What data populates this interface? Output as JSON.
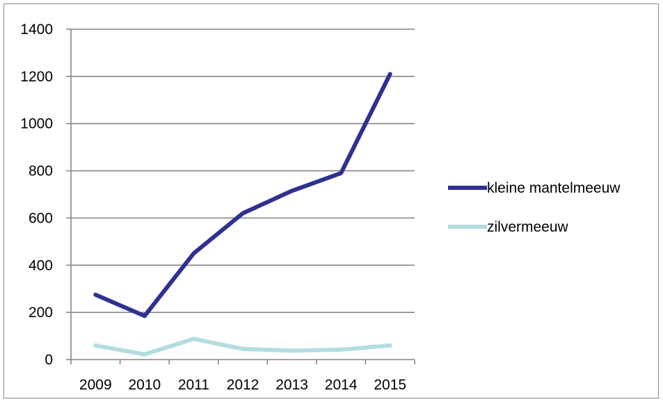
{
  "chart_data": {
    "type": "line",
    "title": "",
    "xlabel": "",
    "ylabel": "",
    "categories": [
      "2009",
      "2010",
      "2011",
      "2012",
      "2013",
      "2014",
      "2015"
    ],
    "ylim": [
      0,
      1400
    ],
    "yticks": [
      0,
      200,
      400,
      600,
      800,
      1000,
      1200,
      1400
    ],
    "grid": true,
    "legend_position": "right",
    "series": [
      {
        "name": "kleine mantelmeeuw",
        "color": "#2e3192",
        "values": [
          275,
          185,
          450,
          620,
          715,
          790,
          1210
        ]
      },
      {
        "name": "zilvermeeuw",
        "color": "#b4dde2",
        "values": [
          60,
          22,
          88,
          45,
          38,
          42,
          60
        ]
      }
    ]
  }
}
